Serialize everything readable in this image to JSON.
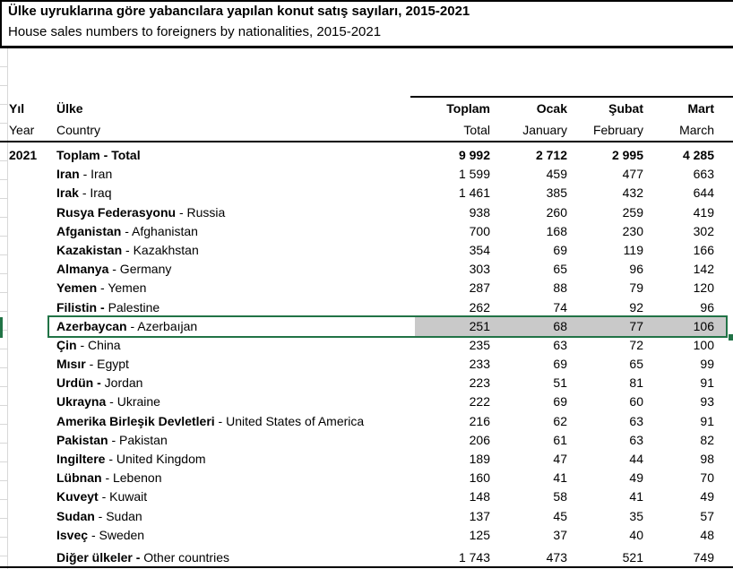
{
  "title": {
    "tr": "Ülke uyruklarına göre yabancılara yapılan konut satış sayıları, 2015-2021",
    "en": "House sales numbers to foreigners by nationalities, 2015-2021"
  },
  "table": {
    "headers": {
      "year": {
        "tr": "Yıl",
        "en": "Year"
      },
      "country": {
        "tr": "Ülke",
        "en": "Country"
      },
      "cols": [
        {
          "tr": "Toplam",
          "en": "Total"
        },
        {
          "tr": "Ocak",
          "en": "January"
        },
        {
          "tr": "Şubat",
          "en": "February"
        },
        {
          "tr": "Mart",
          "en": "March"
        }
      ]
    },
    "rows": [
      {
        "year": "2021",
        "tr": "Toplam -",
        "en": "Total",
        "values": [
          "9 992",
          "2 712",
          "2 995",
          "4 285"
        ],
        "bold": true
      },
      {
        "tr": "Iran",
        "en": "- Iran",
        "values": [
          "1 599",
          "459",
          "477",
          "663"
        ]
      },
      {
        "tr": "Irak",
        "en": "- Iraq",
        "values": [
          "1 461",
          "385",
          "432",
          "644"
        ]
      },
      {
        "tr": "Rusya Federasyonu",
        "en": "- Russia",
        "values": [
          "938",
          "260",
          "259",
          "419"
        ]
      },
      {
        "tr": "Afganistan",
        "en": "- Afghanistan",
        "values": [
          "700",
          "168",
          "230",
          "302"
        ]
      },
      {
        "tr": "Kazakistan",
        "en": "- Kazakhstan",
        "values": [
          "354",
          "69",
          "119",
          "166"
        ]
      },
      {
        "tr": "Almanya",
        "en": "- Germany",
        "values": [
          "303",
          "65",
          "96",
          "142"
        ]
      },
      {
        "tr": "Yemen",
        "en": "- Yemen",
        "values": [
          "287",
          "88",
          "79",
          "120"
        ]
      },
      {
        "tr": "Filistin -",
        "en": "Palestine",
        "values": [
          "262",
          "74",
          "92",
          "96"
        ]
      },
      {
        "tr": "Azerbaycan",
        "en": "- Azerbaıjan",
        "values": [
          "251",
          "68",
          "77",
          "106"
        ],
        "selected": true
      },
      {
        "tr": "Çin",
        "en": "- China",
        "values": [
          "235",
          "63",
          "72",
          "100"
        ]
      },
      {
        "tr": "Mısır",
        "en": "- Egypt",
        "values": [
          "233",
          "69",
          "65",
          "99"
        ]
      },
      {
        "tr": "Urdün -",
        "en": "Jordan",
        "values": [
          "223",
          "51",
          "81",
          "91"
        ]
      },
      {
        "tr": "Ukrayna",
        "en": "- Ukraine",
        "values": [
          "222",
          "69",
          "60",
          "93"
        ]
      },
      {
        "tr": "Amerika Birleşik Devletleri",
        "en": "- United States of America",
        "values": [
          "216",
          "62",
          "63",
          "91"
        ]
      },
      {
        "tr": "Pakistan",
        "en": "- Pakistan",
        "values": [
          "206",
          "61",
          "63",
          "82"
        ]
      },
      {
        "tr": "Ingiltere",
        "en": "- United Kingdom",
        "values": [
          "189",
          "47",
          "44",
          "98"
        ]
      },
      {
        "tr": "Lübnan",
        "en": "- Lebenon",
        "values": [
          "160",
          "41",
          "49",
          "70"
        ]
      },
      {
        "tr": "Kuveyt",
        "en": "- Kuwait",
        "values": [
          "148",
          "58",
          "41",
          "49"
        ]
      },
      {
        "tr": "Sudan",
        "en": "- Sudan",
        "values": [
          "137",
          "45",
          "35",
          "57"
        ]
      },
      {
        "tr": "Isveç",
        "en": "- Sweden",
        "values": [
          "125",
          "37",
          "40",
          "48"
        ]
      },
      {
        "tr": "Diğer ülkeler -",
        "en": "Other countries",
        "values": [
          "1 743",
          "473",
          "521",
          "749"
        ],
        "spacer": true
      }
    ]
  },
  "selection": {
    "selected_row": "Azerbaycan - Azerbaıjan",
    "selected_values": [
      "251",
      "68",
      "77",
      "106"
    ]
  },
  "colors": {
    "selection_green": "#217346",
    "highlight_gray": "#c9c9c9",
    "gridline": "#d8d8d8",
    "rule": "#000000",
    "text": "#000000"
  }
}
